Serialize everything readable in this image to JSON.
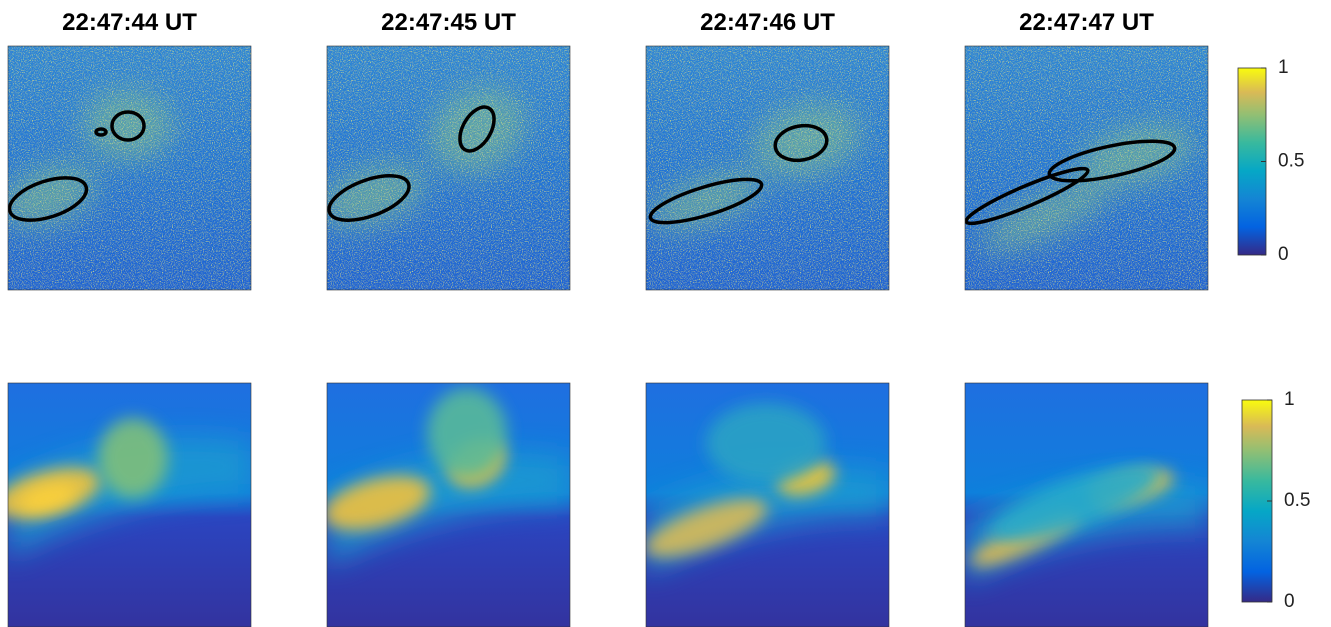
{
  "panels": {
    "titles": [
      "22:47:44 UT",
      "22:47:45 UT",
      "22:47:46 UT",
      "22:47:47 UT"
    ]
  },
  "colorbars": [
    {
      "lim": [
        0,
        1
      ],
      "ticks": [
        0,
        0.5,
        1
      ]
    },
    {
      "lim": [
        0,
        1
      ],
      "ticks": [
        0,
        0.5,
        1
      ]
    }
  ]
}
